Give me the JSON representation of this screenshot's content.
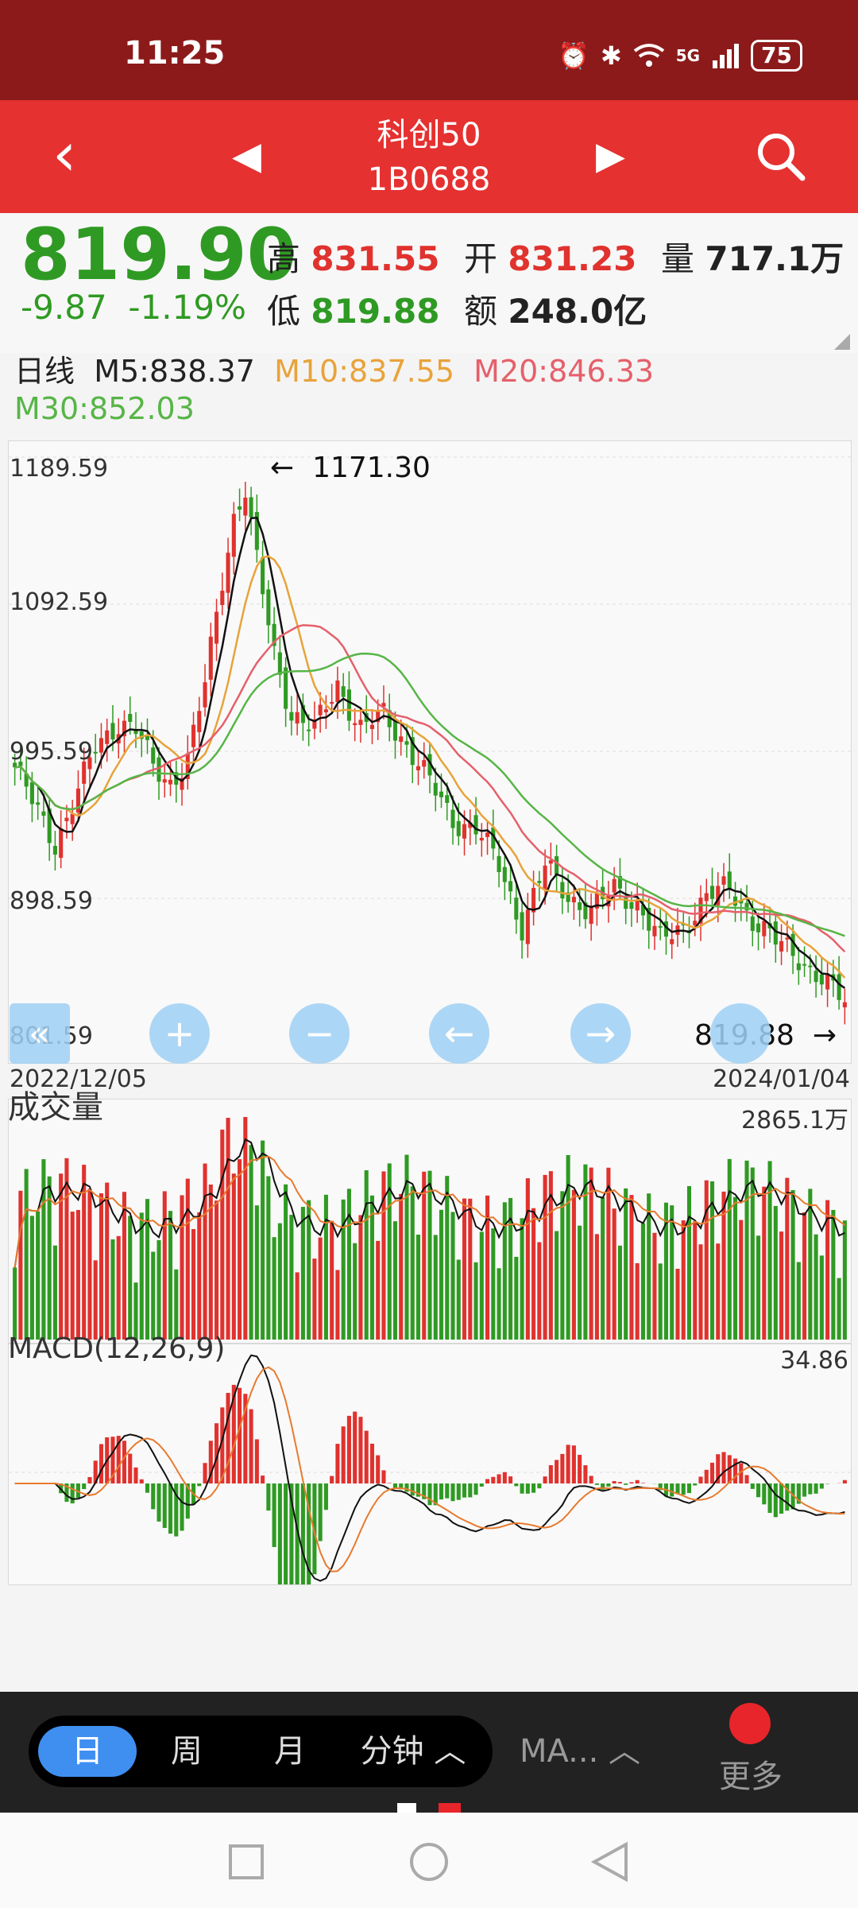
{
  "status": {
    "time": "11:25",
    "signal": "5G",
    "battery": "75"
  },
  "header": {
    "back": "‹",
    "prev": "◀",
    "next": "▶",
    "name": "科创50",
    "code": "1B0688"
  },
  "quote": {
    "price": "819.90",
    "change": "-9.87",
    "change_pct": "-1.19%",
    "high_label": "高",
    "high": "831.55",
    "low_label": "低",
    "low": "819.88",
    "open_label": "开",
    "open": "831.23",
    "amount_label": "额",
    "amount": "248.0亿",
    "volume_label": "量",
    "volume": "717.1万"
  },
  "ma": {
    "period": "日线",
    "m5": "M5:838.37",
    "m10": "M10:837.55",
    "m20": "M20:846.33",
    "m30": "M30:852.03"
  },
  "kline": {
    "y_labels": [
      "1189.59",
      "1092.59",
      "995.59",
      "898.59",
      "801.59"
    ],
    "high_marker": "1171.30",
    "low_marker": "819.88",
    "start_date": "2022/12/05",
    "end_date": "2024/01/04"
  },
  "volume_panel": {
    "title": "成交量",
    "max": "2865.1万"
  },
  "macd_panel": {
    "title": "MACD(12,26,9)",
    "max": "34.86"
  },
  "controls": [
    "«",
    "+",
    "−",
    "←",
    "→"
  ],
  "tabs": {
    "day": "日",
    "week": "周",
    "month": "月",
    "minute": "分钟 ︿",
    "ma": "MA... ︿",
    "more": "更多"
  },
  "colors": {
    "up": "#e0322e",
    "down": "#2f9a23",
    "m5": "#111111",
    "m10": "#e8a33a",
    "m20": "#e5606b",
    "m30": "#57b547"
  },
  "chart_data": {
    "type": "candlestick",
    "y_range": [
      801.59,
      1189.59
    ],
    "close_points": [
      [
        0,
        985
      ],
      [
        4,
        955
      ],
      [
        7,
        935
      ],
      [
        10,
        960
      ],
      [
        14,
        998
      ],
      [
        18,
        1015
      ],
      [
        21,
        1010
      ],
      [
        24,
        985
      ],
      [
        27,
        975
      ],
      [
        30,
        990
      ],
      [
        33,
        1040
      ],
      [
        36,
        1110
      ],
      [
        38,
        1150
      ],
      [
        40,
        1168
      ],
      [
        42,
        1120
      ],
      [
        45,
        1060
      ],
      [
        48,
        1020
      ],
      [
        52,
        1010
      ],
      [
        56,
        1040
      ],
      [
        60,
        1010
      ],
      [
        64,
        1020
      ],
      [
        68,
        1000
      ],
      [
        72,
        975
      ],
      [
        76,
        950
      ],
      [
        80,
        945
      ],
      [
        84,
        920
      ],
      [
        88,
        880
      ],
      [
        92,
        920
      ],
      [
        96,
        900
      ],
      [
        100,
        890
      ],
      [
        104,
        905
      ],
      [
        108,
        895
      ],
      [
        112,
        870
      ],
      [
        116,
        880
      ],
      [
        120,
        900
      ],
      [
        124,
        905
      ],
      [
        128,
        885
      ],
      [
        132,
        870
      ],
      [
        136,
        860
      ],
      [
        140,
        845
      ],
      [
        144,
        830
      ]
    ]
  }
}
